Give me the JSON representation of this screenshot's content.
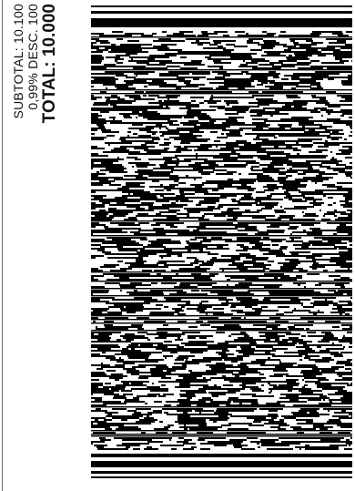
{
  "totals": {
    "subtotal_label": "SUBTOTAL:",
    "subtotal_value": "10.100",
    "discount_label": "0,99% DESC.",
    "discount_value": "100",
    "total_label": "TOTAL:",
    "total_value": "10.000"
  },
  "barcode": {
    "color": "#000000",
    "background": "#ffffff"
  }
}
